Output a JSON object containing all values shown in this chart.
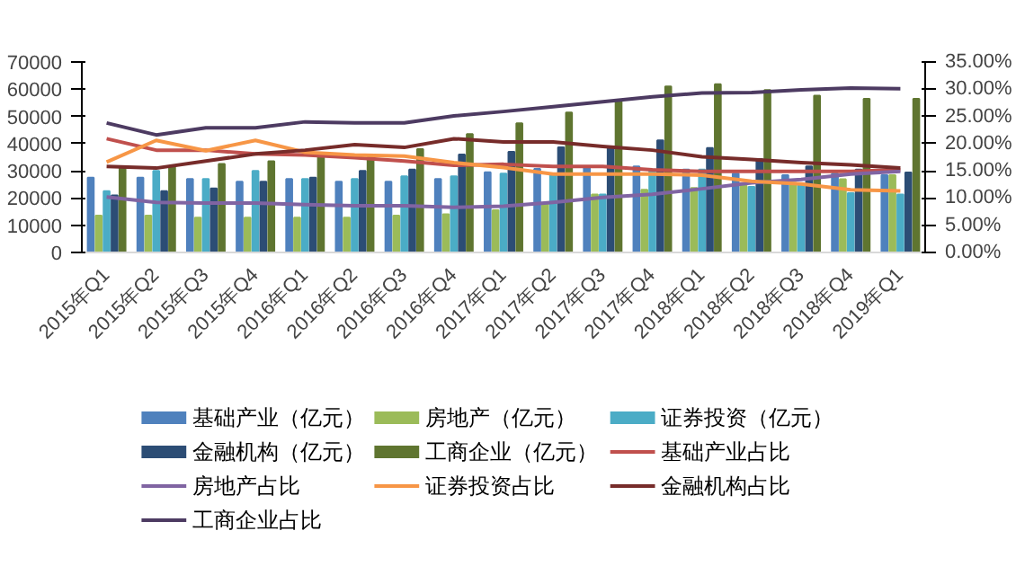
{
  "chart_data": {
    "type": "bar",
    "categories": [
      "2015年Q1",
      "2015年Q2",
      "2015年Q3",
      "2015年Q4",
      "2016年Q1",
      "2016年Q2",
      "2016年Q3",
      "2016年Q4",
      "2017年Q1",
      "2017年Q2",
      "2017年Q3",
      "2017年Q4",
      "2018年Q1",
      "2018年Q2",
      "2018年Q3",
      "2018年Q4",
      "2019年Q1"
    ],
    "series": [
      {
        "name": "基础产业（亿元）",
        "color": "#4f81bd",
        "values": [
          27500,
          27500,
          27000,
          26000,
          27000,
          26000,
          26000,
          27000,
          29500,
          30700,
          31600,
          31600,
          30500,
          29000,
          28400,
          29000,
          28400
        ]
      },
      {
        "name": "房地产（亿元）",
        "color": "#9bbb59",
        "values": [
          13500,
          13500,
          12800,
          12800,
          12800,
          12800,
          13500,
          14000,
          15500,
          18000,
          21300,
          23000,
          23700,
          24500,
          25600,
          26900,
          28400
        ]
      },
      {
        "name": "证券投资（亿元）",
        "color": "#4bacc6",
        "values": [
          22500,
          30000,
          27000,
          30000,
          27000,
          27000,
          28000,
          28000,
          29000,
          28400,
          21300,
          30500,
          30500,
          24100,
          24700,
          21800,
          21300
        ]
      },
      {
        "name": "金融机构（亿元）",
        "color": "#2c4d75",
        "values": [
          21000,
          22500,
          23500,
          26000,
          27500,
          30000,
          30500,
          36000,
          37000,
          38600,
          39000,
          41200,
          38400,
          34300,
          31600,
          30500,
          29400
        ]
      },
      {
        "name": "工商企业（亿元）",
        "color": "#5f7530",
        "values": [
          31000,
          31500,
          32500,
          33500,
          36000,
          35000,
          38000,
          43500,
          47500,
          51400,
          55700,
          61000,
          61800,
          59700,
          57600,
          56500,
          56500
        ]
      },
      {
        "name": "基础产业占比",
        "type": "line",
        "axis": "y2",
        "color": "#c0504d",
        "values": [
          20.9,
          18.8,
          18.8,
          18.1,
          17.9,
          17.4,
          16.8,
          16.0,
          16.2,
          15.8,
          15.8,
          15.2,
          14.9,
          14.9,
          14.9,
          14.9,
          15.2
        ]
      },
      {
        "name": "房地产占比",
        "type": "line",
        "axis": "y2",
        "color": "#8064a2",
        "values": [
          10.2,
          9.2,
          9.1,
          9.1,
          8.8,
          8.6,
          8.6,
          8.3,
          8.5,
          9.2,
          10.1,
          10.7,
          11.7,
          12.8,
          13.4,
          14.4,
          14.9
        ]
      },
      {
        "name": "证券投资占比",
        "type": "line",
        "axis": "y2",
        "color": "#f79646",
        "values": [
          16.6,
          20.6,
          18.7,
          20.6,
          18.4,
          17.9,
          17.7,
          16.5,
          15.6,
          14.4,
          14.4,
          14.4,
          14.2,
          13.1,
          12.6,
          11.5,
          11.3
        ]
      },
      {
        "name": "金融机构占比",
        "type": "line",
        "axis": "y2",
        "color": "#772c2a",
        "values": [
          15.8,
          15.5,
          16.8,
          18.1,
          18.8,
          19.8,
          19.3,
          20.9,
          20.3,
          20.3,
          19.5,
          18.8,
          17.6,
          17.1,
          16.5,
          16.1,
          15.5
        ]
      },
      {
        "name": "工商企业占比",
        "type": "line",
        "axis": "y2",
        "color": "#4d3b62",
        "values": [
          23.8,
          21.6,
          22.9,
          22.9,
          24.0,
          23.8,
          23.8,
          25.1,
          25.9,
          26.8,
          27.7,
          28.6,
          29.3,
          29.4,
          29.9,
          30.2,
          30.1
        ]
      }
    ],
    "ylim": [
      0,
      70000
    ],
    "yticks": [
      0,
      10000,
      20000,
      30000,
      40000,
      50000,
      60000,
      70000
    ],
    "y2lim": [
      0,
      35
    ],
    "y2ticks": [
      {
        "value": 0,
        "label": "0.00%"
      },
      {
        "value": 5,
        "label": "5.00%"
      },
      {
        "value": 10,
        "label": "10.00%"
      },
      {
        "value": 15,
        "label": "15.00%"
      },
      {
        "value": 20,
        "label": "20.00%"
      },
      {
        "value": 25,
        "label": "25.00%"
      },
      {
        "value": 30,
        "label": "30.00%"
      },
      {
        "value": 35,
        "label": "35.00%"
      }
    ],
    "grid": false,
    "legend": "bottom"
  }
}
